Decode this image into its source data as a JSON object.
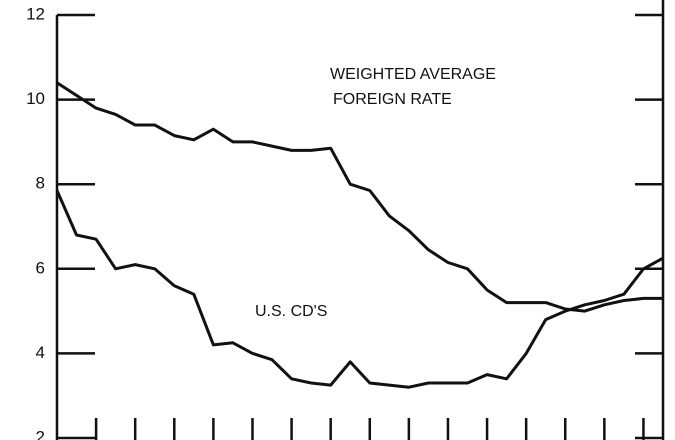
{
  "chart_data": {
    "type": "line",
    "annotations": [
      "WEIGHTED AVERAGE",
      "FOREIGN RATE",
      "U.S. CD'S"
    ],
    "x": [
      0,
      0.5,
      1,
      1.5,
      2,
      2.5,
      3,
      3.5,
      4,
      4.5,
      5,
      5.5,
      6,
      6.5,
      7,
      7.5,
      8,
      8.5,
      9,
      9.5,
      10,
      10.5,
      11,
      11.5,
      12,
      12.5,
      13,
      13.5,
      14,
      14.5,
      15,
      15.5
    ],
    "series": [
      {
        "color": "#111111",
        "values": [
          10.4,
          10.1,
          9.8,
          9.65,
          9.4,
          9.4,
          9.15,
          9.05,
          9.3,
          9.0,
          9.0,
          8.9,
          8.8,
          8.8,
          8.85,
          8.0,
          7.85,
          7.25,
          6.9,
          6.45,
          6.15,
          6.0,
          5.5,
          5.2,
          5.2,
          5.2,
          5.05,
          5.0,
          5.15,
          5.25,
          5.3,
          5.3
        ]
      },
      {
        "color": "#111111",
        "values": [
          7.85,
          6.8,
          6.7,
          6.0,
          6.1,
          6.0,
          5.6,
          5.4,
          4.2,
          4.25,
          4.0,
          3.85,
          3.4,
          3.3,
          3.25,
          3.8,
          3.3,
          3.25,
          3.2,
          3.3,
          3.3,
          3.3,
          3.5,
          3.4,
          4.0,
          4.8,
          5.0,
          5.15,
          5.25,
          5.4,
          6.0,
          6.25
        ]
      }
    ],
    "xlim": [
      0,
      15.5
    ],
    "xticks": [
      1,
      2,
      3,
      4,
      5,
      6,
      7,
      8,
      9,
      10,
      11,
      12,
      13,
      14,
      15
    ],
    "ylim": [
      2,
      12
    ],
    "yticks": [
      2,
      4,
      6,
      8,
      10,
      12
    ]
  }
}
